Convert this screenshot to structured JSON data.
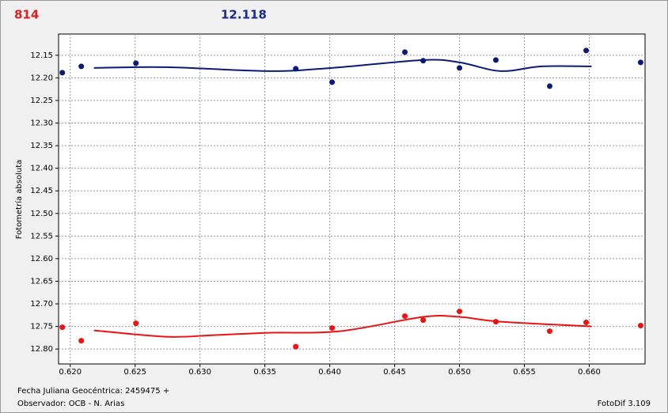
{
  "header": {
    "left": "814",
    "center": "12.118"
  },
  "chart_data": {
    "type": "scatter",
    "y_label": "Fotometría absoluta",
    "xlim": [
      0.6191,
      0.6643
    ],
    "ylim": [
      12.103,
      12.833
    ],
    "y_inverted": true,
    "grid": true,
    "xticks": [
      {
        "value": 0.62,
        "label": "0.620"
      },
      {
        "value": 0.625,
        "label": "0.625"
      },
      {
        "value": 0.63,
        "label": "0.630"
      },
      {
        "value": 0.635,
        "label": "0.635"
      },
      {
        "value": 0.64,
        "label": "0.640"
      },
      {
        "value": 0.645,
        "label": "0.645"
      },
      {
        "value": 0.65,
        "label": "0.650"
      },
      {
        "value": 0.655,
        "label": "0.655"
      },
      {
        "value": 0.66,
        "label": "0.660"
      }
    ],
    "yticks": [
      12.15,
      {
        "value": 12.2,
        "label": "12.20"
      },
      12.25,
      {
        "value": 12.3,
        "label": "12.30"
      },
      12.35,
      {
        "value": 12.4,
        "label": "12.40"
      },
      12.45,
      {
        "value": 12.5,
        "label": "12.50"
      },
      12.55,
      {
        "value": 12.6,
        "label": "12.60"
      },
      12.65,
      {
        "value": 12.7,
        "label": "12.70"
      },
      12.75,
      {
        "value": 12.8,
        "label": "12.80"
      }
    ],
    "series": [
      {
        "mode": "markers",
        "color": "#0a1a7a",
        "x": [
          0.61939,
          0.62085,
          0.62506,
          0.63738,
          0.64018,
          0.64579,
          0.6472,
          0.65,
          0.6528,
          0.65695,
          0.65976,
          0.66396
        ],
        "values": [
          12.1886,
          12.1746,
          12.1675,
          12.1798,
          12.2096,
          12.143,
          12.162,
          12.178,
          12.1605,
          12.2184,
          12.1395,
          12.1658
        ]
      },
      {
        "mode": "line",
        "color": "#0a1a7a",
        "x": [
          0.62183,
          0.62738,
          0.6353,
          0.64018,
          0.6472,
          0.65,
          0.65317,
          0.65634,
          0.66018
        ],
        "values": [
          12.178,
          12.1763,
          12.185,
          12.178,
          12.1605,
          12.1658,
          12.185,
          12.1746,
          12.1746
        ]
      },
      {
        "mode": "markers",
        "color": "#ee1111",
        "x": [
          0.61939,
          0.62085,
          0.62506,
          0.63738,
          0.64018,
          0.64579,
          0.6472,
          0.65,
          0.6528,
          0.65695,
          0.65976,
          0.66396
        ],
        "values": [
          12.7518,
          12.7816,
          12.743,
          12.7947,
          12.7535,
          12.7272,
          12.736,
          12.7167,
          12.7395,
          12.7605,
          12.7412,
          12.7482
        ]
      },
      {
        "mode": "line",
        "color": "#ee1111",
        "x": [
          0.62183,
          0.62738,
          0.63104,
          0.6353,
          0.64079,
          0.6472,
          0.65,
          0.65317,
          0.66018
        ],
        "values": [
          12.7588,
          12.7728,
          12.7693,
          12.764,
          12.7605,
          12.7289,
          12.7289,
          12.7395,
          12.75
        ]
      }
    ]
  },
  "footer": {
    "line1": "Fecha Juliana Geocéntrica: 2459475 +",
    "line2": "Observador: OCB - N. Arias",
    "version": "FotoDif 3.109"
  }
}
